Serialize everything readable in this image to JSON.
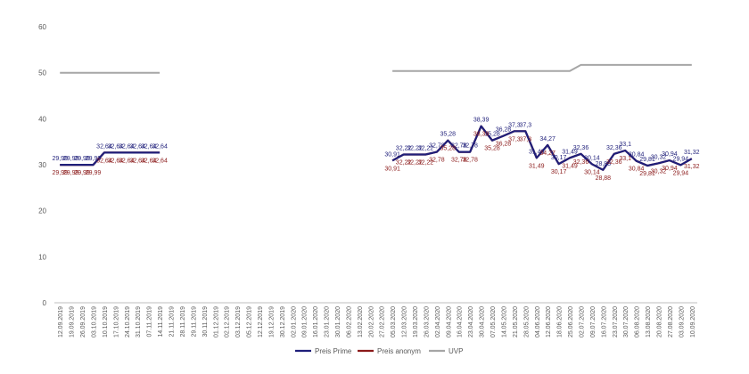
{
  "chart_data": {
    "type": "line",
    "title": "",
    "xlabel": "",
    "ylabel": "",
    "ylim": [
      0,
      60
    ],
    "yticks": [
      0,
      10,
      20,
      30,
      40,
      50,
      60
    ],
    "grid": false,
    "legend_position": "bottom",
    "categories": [
      "12.09.2019",
      "19.09.2019",
      "26.09.2019",
      "03.10.2019",
      "10.10.2019",
      "17.10.2019",
      "24.10.2019",
      "31.10.2019",
      "07.11.2019",
      "14.11.2019",
      "21.11.2019",
      "28.11.2019",
      "29.11.2019",
      "30.11.2019",
      "01.12.2019",
      "02.12.2019",
      "03.12.2019",
      "05.12.2019",
      "12.12.2019",
      "19.12.2019",
      "30.12.2019",
      "02.01.2020",
      "09.01.2020",
      "16.01.2020",
      "23.01.2020",
      "30.01.2020",
      "06.02.2020",
      "13.02.2020",
      "20.02.2020",
      "27.02.2020",
      "05.03.2020",
      "12.03.2020",
      "19.03.2020",
      "26.03.2020",
      "02.04.2020",
      "09.04.2020",
      "16.04.2020",
      "23.04.2020",
      "30.04.2020",
      "07.05.2020",
      "14.05.2020",
      "21.05.2020",
      "28.05.2020",
      "04.06.2020",
      "12.06.2020",
      "18.06.2020",
      "25.06.2020",
      "02.07.2020",
      "09.07.2020",
      "16.07.2020",
      "23.07.2020",
      "30.07.2020",
      "06.08.2020",
      "13.08.2020",
      "20.08.2020",
      "27.08.2020",
      "03.09.2020",
      "10.09.2020"
    ],
    "series": [
      {
        "name": "Preis Prime",
        "color": "#1f1f7a",
        "label_position": "above",
        "values": [
          29.99,
          29.99,
          29.99,
          29.99,
          32.64,
          32.64,
          32.64,
          32.64,
          32.64,
          32.64,
          null,
          null,
          null,
          null,
          null,
          null,
          null,
          null,
          null,
          null,
          null,
          null,
          null,
          null,
          null,
          null,
          null,
          null,
          null,
          null,
          30.91,
          32.22,
          32.22,
          32.22,
          32.78,
          35.28,
          32.78,
          32.78,
          38.39,
          35.28,
          36.28,
          37.3,
          37.3,
          31.49,
          34.27,
          30.17,
          31.49,
          32.36,
          30.14,
          28.88,
          32.36,
          33.1,
          30.84,
          29.81,
          30.32,
          30.94,
          29.94,
          31.32
        ]
      },
      {
        "name": "Preis anonym",
        "color": "#8b1a1a",
        "label_position": "below",
        "values": [
          29.99,
          29.99,
          29.99,
          29.99,
          32.64,
          32.64,
          32.64,
          32.64,
          32.64,
          32.64,
          null,
          null,
          null,
          null,
          null,
          null,
          null,
          null,
          null,
          null,
          null,
          null,
          null,
          null,
          null,
          null,
          null,
          null,
          null,
          null,
          30.91,
          32.22,
          32.22,
          32.22,
          32.78,
          35.28,
          32.78,
          32.78,
          38.39,
          35.28,
          36.28,
          37.3,
          37.3,
          31.49,
          34.27,
          30.17,
          31.49,
          32.36,
          30.14,
          28.88,
          32.36,
          33.1,
          30.84,
          29.81,
          30.32,
          30.94,
          29.94,
          31.32
        ]
      },
      {
        "name": "UVP",
        "color": "#a6a6a6",
        "label_position": "none",
        "values": [
          49.99,
          49.99,
          49.99,
          49.99,
          49.99,
          49.99,
          49.99,
          49.99,
          49.99,
          49.99,
          null,
          null,
          null,
          null,
          null,
          null,
          null,
          null,
          null,
          null,
          null,
          null,
          null,
          null,
          null,
          null,
          null,
          null,
          null,
          null,
          50.39,
          50.39,
          50.39,
          50.39,
          50.39,
          50.39,
          50.39,
          50.39,
          50.39,
          50.39,
          50.39,
          50.39,
          50.39,
          50.39,
          50.39,
          50.39,
          50.39,
          51.69,
          51.69,
          51.69,
          51.69,
          51.69,
          51.69,
          51.69,
          51.69,
          51.69,
          51.69,
          51.69
        ]
      }
    ]
  }
}
